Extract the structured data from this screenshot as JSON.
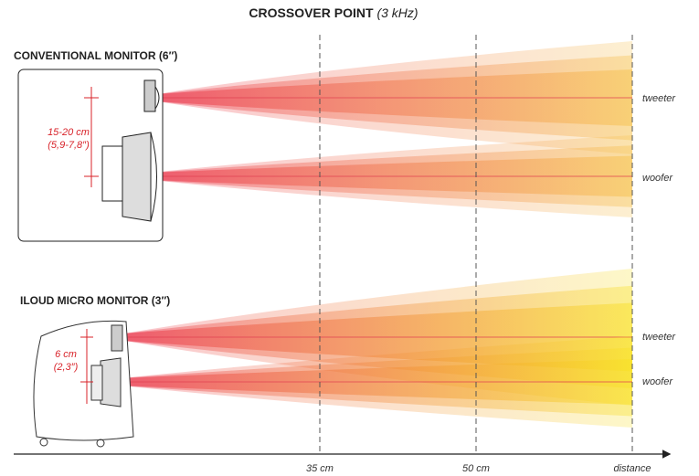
{
  "title": {
    "main": "CROSSOVER POINT",
    "detail": "(3 kHz)"
  },
  "panels": [
    {
      "label": "CONVENTIONAL MONITOR (6″)",
      "spacing": "15-20 cm",
      "spacing_inches": "(5,9-7,8″)",
      "beams": [
        "tweeter",
        "woofer"
      ]
    },
    {
      "label": "ILOUD MICRO MONITOR (3″)",
      "spacing": "6 cm",
      "spacing_inches": "(2,3″)",
      "beams": [
        "tweeter",
        "woofer"
      ]
    }
  ],
  "axis": {
    "marks": [
      "35 cm",
      "50 cm",
      "distance"
    ]
  }
}
